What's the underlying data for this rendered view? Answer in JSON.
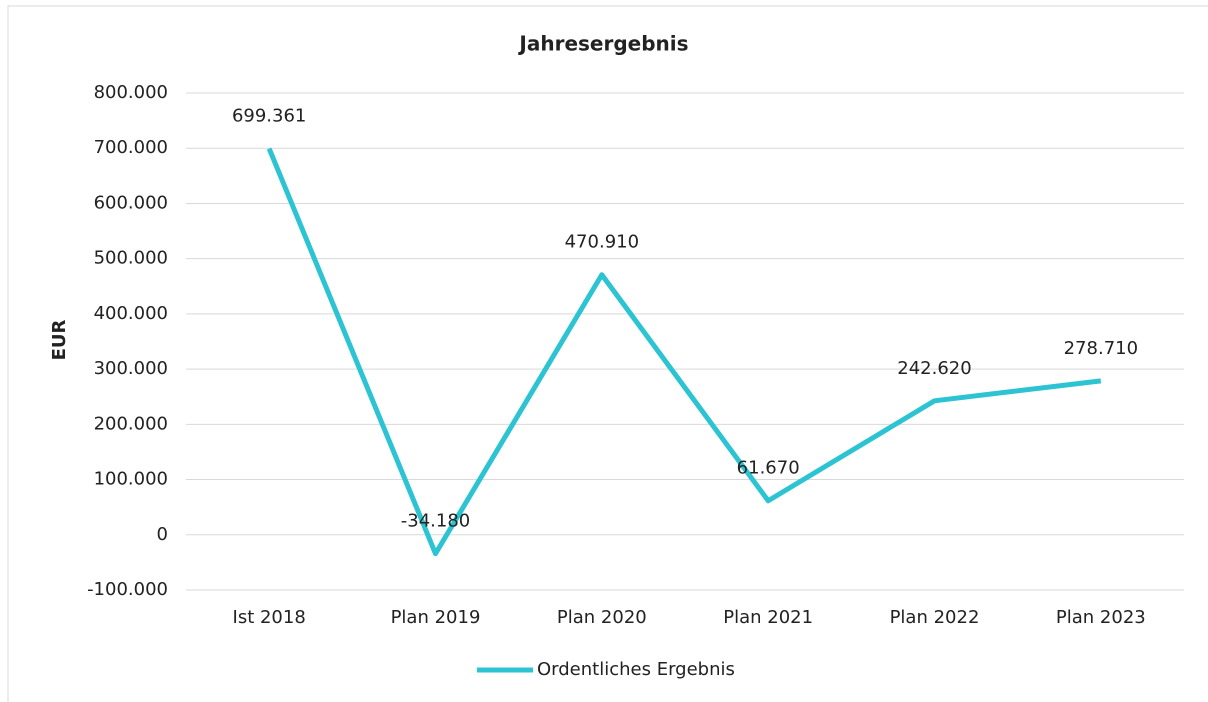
{
  "chart_data": {
    "type": "line",
    "title": "Jahresergebnis",
    "y_label": "EUR",
    "categories": [
      "Ist 2018",
      "Plan 2019",
      "Plan 2020",
      "Plan 2021",
      "Plan 2022",
      "Plan 2023"
    ],
    "series": [
      {
        "name": "Ordentliches Ergebnis",
        "color": "#2cc3d3",
        "values": [
          699361,
          -34180,
          470910,
          61670,
          242620,
          278710
        ],
        "value_labels": [
          "699.361",
          "-34.180",
          "470.910",
          "61.670",
          "242.620",
          "278.710"
        ]
      }
    ],
    "ylim": [
      -100000,
      800000
    ],
    "yticks": [
      {
        "value": -100000,
        "label": "-100.000"
      },
      0,
      {
        "value": 100000,
        "label": "100.000"
      },
      {
        "value": 200000,
        "label": "200.000"
      },
      {
        "value": 300000,
        "label": "300.000"
      },
      {
        "value": 400000,
        "label": "400.000"
      },
      {
        "value": 500000,
        "label": "500.000"
      },
      {
        "value": 600000,
        "label": "600.000"
      },
      {
        "value": 700000,
        "label": "700.000"
      },
      {
        "value": 800000,
        "label": "800.000"
      }
    ],
    "grid": true,
    "legend": "bottom"
  }
}
